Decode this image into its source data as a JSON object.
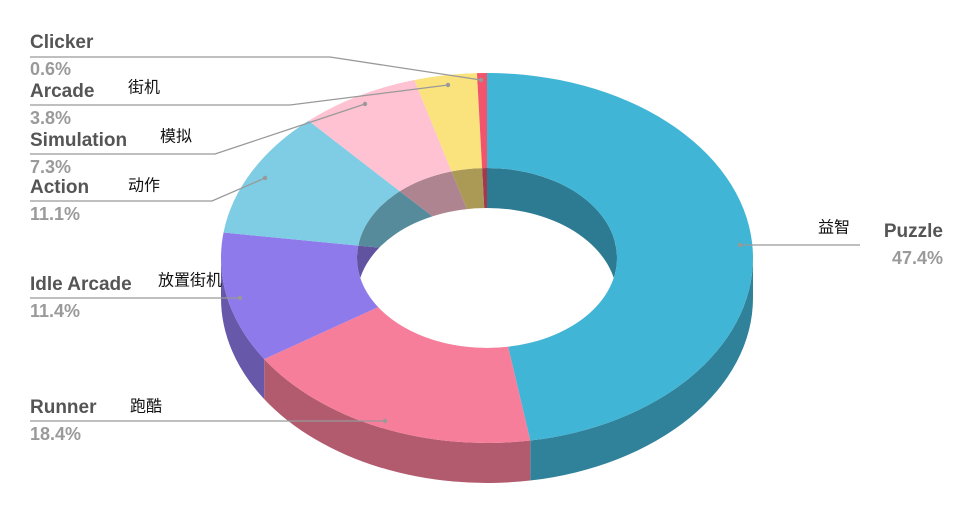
{
  "chart_data": {
    "type": "pie",
    "donut": true,
    "categories": [
      "Puzzle",
      "Runner",
      "Idle Arcade",
      "Action",
      "Simulation",
      "Arcade",
      "Clicker"
    ],
    "values": [
      47.4,
      18.4,
      11.4,
      11.1,
      7.3,
      3.8,
      0.6
    ],
    "value_labels": [
      "47.4%",
      "18.4%",
      "11.4%",
      "11.1%",
      "7.3%",
      "3.8%",
      "0.6%"
    ],
    "translations": [
      "益智",
      "跑酷",
      "放置街机",
      "动作",
      "模拟",
      "街机",
      null
    ],
    "colors": [
      "#41b5d6",
      "#f77e9a",
      "#8f7aeb",
      "#7ecde4",
      "#fec2d3",
      "#fae27d",
      "#f2546e"
    ]
  }
}
